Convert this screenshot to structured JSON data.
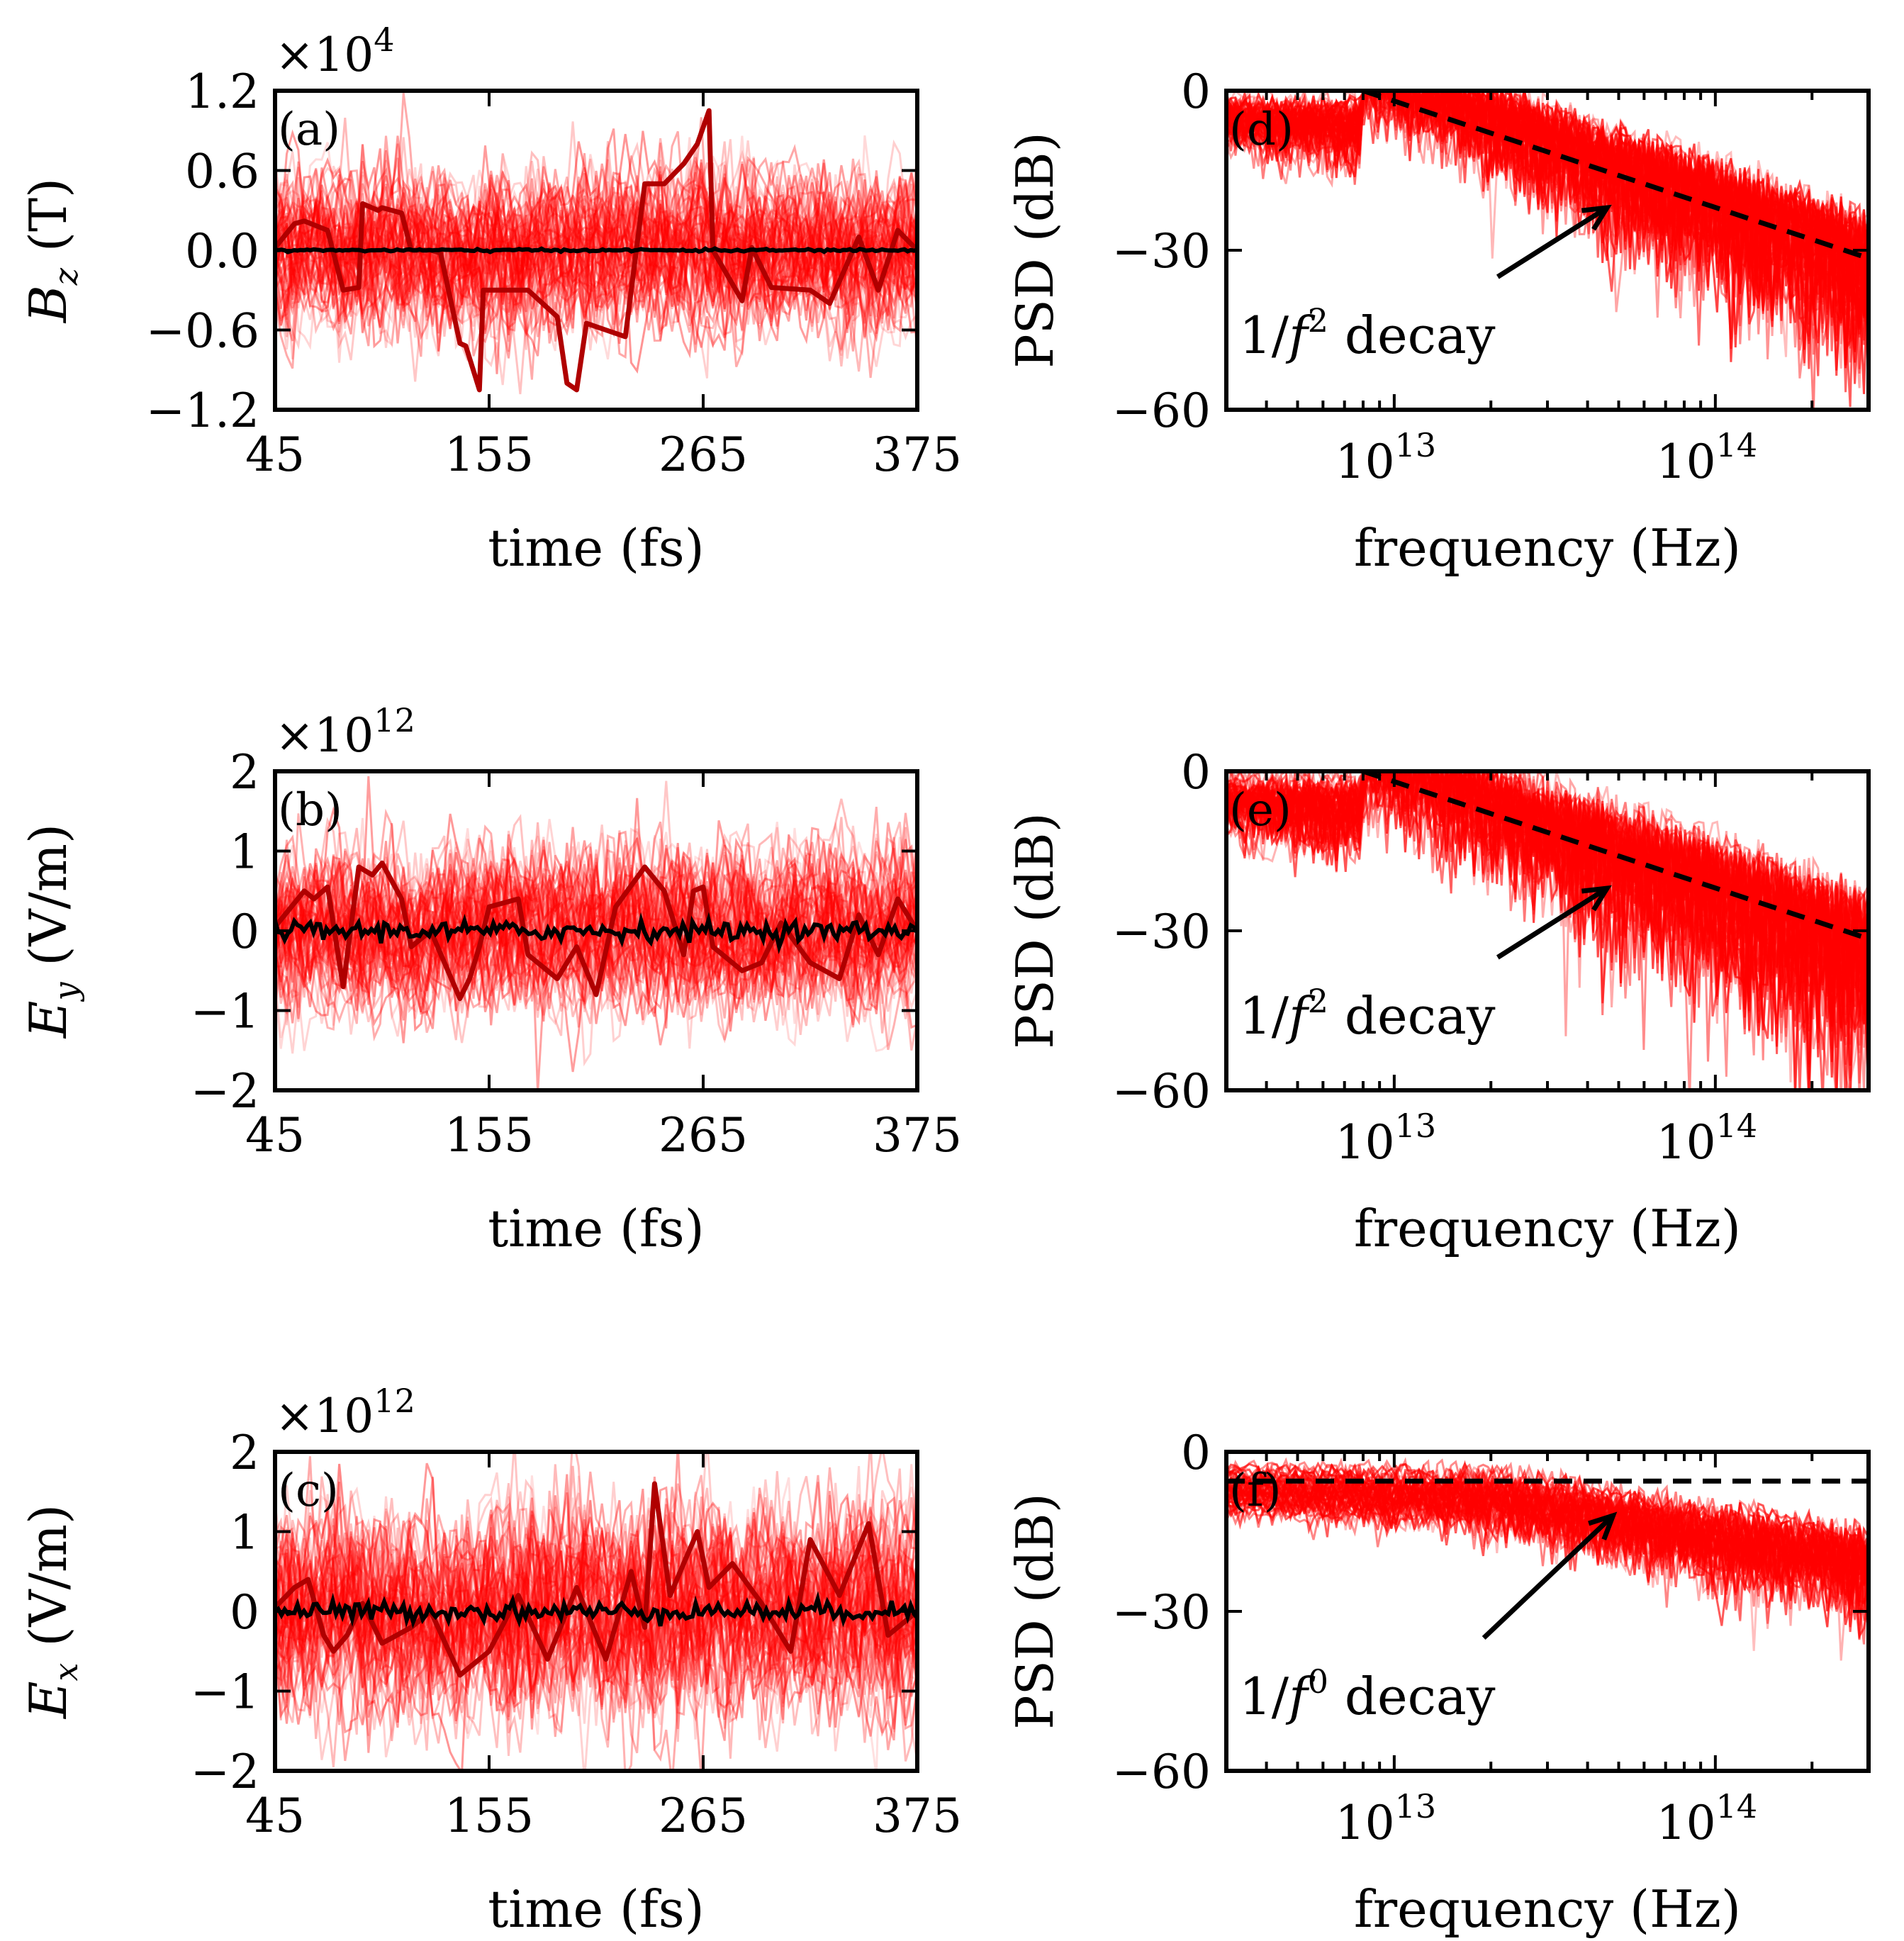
{
  "figure": {
    "colors": {
      "trace": "#ff0000",
      "trace_dark": "#b00000",
      "mean": "#000000",
      "dashed": "#000000"
    },
    "n_traces": 60
  },
  "chart_data": [
    {
      "type": "line",
      "panel": "(a)",
      "xlabel": "time (fs)",
      "ylabel_var": "B",
      "ylabel_sub": "z",
      "ylabel_unit": "(T)",
      "xlim": [
        45,
        375
      ],
      "ylim": [
        -1.2,
        1.2
      ],
      "xticks": [
        45,
        155,
        265,
        375
      ],
      "xticklabels": [
        "45",
        "155",
        "265",
        "375"
      ],
      "yticks": [
        -1.2,
        -0.6,
        0.0,
        0.6,
        1.2
      ],
      "yticklabels": [
        "−1.2",
        "−0.6",
        "0.0",
        "0.6",
        "1.2"
      ],
      "offset_base": "×10",
      "offset_exp": "4",
      "highlight_series": {
        "name": "highlighted trace",
        "x": [
          45,
          55,
          60,
          72,
          80,
          88,
          90,
          98,
          100,
          110,
          115,
          125,
          130,
          140,
          143,
          150,
          152,
          165,
          175,
          190,
          195,
          200,
          205,
          215,
          225,
          235,
          245,
          255,
          262,
          268,
          270,
          285,
          290,
          300,
          320,
          330,
          345,
          355,
          365,
          375
        ],
        "y": [
          0.02,
          0.2,
          0.22,
          0.15,
          -0.3,
          -0.28,
          0.35,
          0.3,
          0.32,
          0.28,
          0.0,
          0.0,
          -0.02,
          -0.7,
          -0.72,
          -1.05,
          -0.3,
          -0.3,
          -0.3,
          -0.5,
          -1.0,
          -1.05,
          -0.55,
          -0.6,
          -0.65,
          0.5,
          0.5,
          0.65,
          0.8,
          1.05,
          0.0,
          -0.38,
          0.02,
          -0.28,
          -0.3,
          -0.4,
          0.1,
          -0.3,
          0.15,
          0.0
        ]
      },
      "mean_series": {
        "name": "mean",
        "x": [
          45,
          375
        ],
        "y": [
          0.0,
          0.0
        ]
      },
      "ensemble_amplitude": 0.35
    },
    {
      "type": "line",
      "panel": "(b)",
      "xlabel": "time (fs)",
      "ylabel_var": "E",
      "ylabel_sub": "y",
      "ylabel_unit": "(V/m)",
      "xlim": [
        45,
        375
      ],
      "ylim": [
        -2,
        2
      ],
      "xticks": [
        45,
        155,
        265,
        375
      ],
      "xticklabels": [
        "45",
        "155",
        "265",
        "375"
      ],
      "yticks": [
        -2,
        -1,
        0,
        1,
        2
      ],
      "yticklabels": [
        "−2",
        "−1",
        "0",
        "1",
        "2"
      ],
      "offset_base": "×10",
      "offset_exp": "12",
      "highlight_series": {
        "name": "highlighted trace",
        "x": [
          45,
          60,
          65,
          72,
          80,
          88,
          95,
          100,
          110,
          115,
          125,
          140,
          145,
          150,
          155,
          170,
          175,
          190,
          200,
          210,
          220,
          235,
          245,
          255,
          260,
          265,
          270,
          285,
          295,
          305,
          320,
          335,
          345,
          355,
          365,
          375
        ],
        "y": [
          0.05,
          0.5,
          0.4,
          0.55,
          -0.7,
          0.8,
          0.7,
          0.85,
          0.4,
          -0.2,
          0.0,
          -0.85,
          -0.6,
          -0.2,
          0.3,
          0.4,
          -0.3,
          -0.6,
          -0.2,
          -0.8,
          0.3,
          0.8,
          0.5,
          -0.3,
          0.5,
          0.55,
          -0.2,
          -0.5,
          -0.4,
          0.1,
          -0.4,
          -0.6,
          0.2,
          -0.3,
          0.4,
          0.0
        ]
      },
      "mean_series": {
        "name": "mean",
        "x": [
          45,
          375
        ],
        "y": [
          0.0,
          0.0
        ]
      },
      "ensemble_amplitude": 0.6
    },
    {
      "type": "line",
      "panel": "(c)",
      "xlabel": "time (fs)",
      "ylabel_var": "E",
      "ylabel_sub": "x",
      "ylabel_unit": "(V/m)",
      "xlim": [
        45,
        375
      ],
      "ylim": [
        -2,
        2
      ],
      "xticks": [
        45,
        155,
        265,
        375
      ],
      "xticklabels": [
        "45",
        "155",
        "265",
        "375"
      ],
      "yticks": [
        -2,
        -1,
        0,
        1,
        2
      ],
      "yticklabels": [
        "−2",
        "−1",
        "0",
        "1",
        "2"
      ],
      "offset_base": "×10",
      "offset_exp": "12",
      "highlight_series": {
        "name": "highlighted trace",
        "x": [
          45,
          55,
          62,
          70,
          75,
          82,
          90,
          100,
          115,
          125,
          140,
          155,
          170,
          185,
          200,
          215,
          228,
          235,
          240,
          248,
          255,
          262,
          268,
          280,
          295,
          310,
          320,
          335,
          350,
          360,
          375
        ],
        "y": [
          0.05,
          0.3,
          0.4,
          -0.3,
          -0.5,
          -0.3,
          0.1,
          -0.4,
          -0.2,
          0.0,
          -0.8,
          -0.5,
          0.2,
          -0.6,
          0.3,
          -0.6,
          0.5,
          -0.2,
          1.6,
          0.2,
          0.6,
          1.0,
          0.3,
          0.6,
          0.1,
          -0.5,
          0.9,
          0.2,
          1.1,
          -0.3,
          0.0
        ]
      },
      "mean_series": {
        "name": "mean",
        "x": [
          45,
          375
        ],
        "y": [
          0.0,
          0.0
        ]
      },
      "ensemble_amplitude": 0.75
    },
    {
      "type": "line",
      "panel": "(d)",
      "xlabel": "frequency (Hz)",
      "ylabel": "PSD (dB)",
      "xscale": "log",
      "xlim": [
        3000000000000.0,
        300000000000000.0
      ],
      "ylim": [
        -60,
        0
      ],
      "xticks": [
        10000000000000.0,
        100000000000000.0
      ],
      "xtick_base": "10",
      "xtick_exps": [
        "13",
        "14"
      ],
      "yticks": [
        -60,
        -30,
        0
      ],
      "yticklabels": [
        "−60",
        "−30",
        "0"
      ],
      "fit_line": {
        "name": "1/f^2 fit",
        "x": [
          8000000000000.0,
          300000000000000.0
        ],
        "y": [
          0,
          -31.5
        ]
      },
      "ensemble_spread": 10,
      "annotation": {
        "prefix": "1/",
        "var": "f",
        "exp": "2",
        "suffix": " decay",
        "arrow_to": [
          46000000000000.0,
          -22
        ],
        "arrow_from": [
          21000000000000.0,
          -35
        ]
      }
    },
    {
      "type": "line",
      "panel": "(e)",
      "xlabel": "frequency (Hz)",
      "ylabel": "PSD (dB)",
      "xscale": "log",
      "xlim": [
        3000000000000.0,
        300000000000000.0
      ],
      "ylim": [
        -60,
        0
      ],
      "xticks": [
        10000000000000.0,
        100000000000000.0
      ],
      "xtick_base": "10",
      "xtick_exps": [
        "13",
        "14"
      ],
      "yticks": [
        -60,
        -30,
        0
      ],
      "yticklabels": [
        "−60",
        "−30",
        "0"
      ],
      "fit_line": {
        "name": "1/f^2 fit",
        "x": [
          8000000000000.0,
          300000000000000.0
        ],
        "y": [
          0,
          -31.5
        ]
      },
      "ensemble_spread": 12,
      "annotation": {
        "prefix": "1/",
        "var": "f",
        "exp": "2",
        "suffix": " decay",
        "arrow_to": [
          46000000000000.0,
          -22
        ],
        "arrow_from": [
          21000000000000.0,
          -35
        ]
      }
    },
    {
      "type": "line",
      "panel": "(f)",
      "xlabel": "frequency (Hz)",
      "ylabel": "PSD (dB)",
      "xscale": "log",
      "xlim": [
        3000000000000.0,
        300000000000000.0
      ],
      "ylim": [
        -60,
        0
      ],
      "xticks": [
        10000000000000.0,
        100000000000000.0
      ],
      "xtick_base": "10",
      "xtick_exps": [
        "13",
        "14"
      ],
      "yticks": [
        -60,
        -30,
        0
      ],
      "yticklabels": [
        "−60",
        "−30",
        "0"
      ],
      "fit_line": {
        "name": "1/f^0 fit",
        "x": [
          3000000000000.0,
          300000000000000.0
        ],
        "y": [
          -5.5,
          -5.5
        ]
      },
      "ensemble_spread": 5,
      "annotation": {
        "prefix": "1/",
        "var": "f",
        "exp": "0",
        "suffix": " decay",
        "arrow_to": [
          48000000000000.0,
          -12
        ],
        "arrow_from": [
          19000000000000.0,
          -35
        ]
      }
    }
  ]
}
